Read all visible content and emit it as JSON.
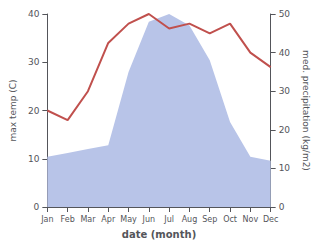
{
  "chart_data": {
    "type": "line",
    "categories": [
      "Jan",
      "Feb",
      "Mar",
      "Apr",
      "May",
      "Jun",
      "Jul",
      "Aug",
      "Sep",
      "Oct",
      "Nov",
      "Dec"
    ],
    "xlabel": "date (month)",
    "ylabel": "max temp (C)",
    "y2label": "med. precipitation (kg/m2)",
    "series": [
      {
        "type": "area",
        "axis": "y2",
        "color": "#b8c4e8",
        "values": [
          13,
          14,
          15,
          16,
          35,
          48,
          50,
          47,
          38,
          22,
          13,
          12
        ]
      },
      {
        "type": "line",
        "color": "#c0504d",
        "values": [
          20,
          18,
          24,
          34,
          38,
          40,
          37,
          38,
          36,
          38,
          32,
          29
        ]
      }
    ],
    "ylim": [
      0,
      40
    ],
    "yticks": [
      0,
      10,
      20,
      30,
      40
    ],
    "y2lim": [
      0,
      50
    ],
    "y2ticks": [
      0,
      10,
      20,
      30,
      40,
      50
    ],
    "grid": false
  }
}
